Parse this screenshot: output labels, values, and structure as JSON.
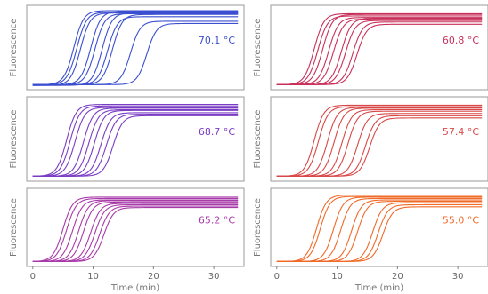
{
  "chart_data": [
    {
      "type": "line",
      "annotation": "70.1 °C",
      "color": "#3b4fd0",
      "ylabel": "Fluorescence",
      "xlabel": "",
      "xlim": [
        -1,
        35
      ],
      "xticks": [],
      "series": [
        {
          "midpoint": 6.8,
          "base": 0.02,
          "plateau": 1.0
        },
        {
          "midpoint": 7.3,
          "base": 0.02,
          "plateau": 0.98
        },
        {
          "midpoint": 7.9,
          "base": 0.01,
          "plateau": 0.97
        },
        {
          "midpoint": 9.6,
          "base": 0.02,
          "plateau": 0.99
        },
        {
          "midpoint": 10.3,
          "base": 0.02,
          "plateau": 0.96
        },
        {
          "midpoint": 11.5,
          "base": 0.01,
          "plateau": 0.97
        },
        {
          "midpoint": 12.4,
          "base": 0.02,
          "plateau": 0.92
        },
        {
          "midpoint": 13.2,
          "base": 0.02,
          "plateau": 0.95
        },
        {
          "midpoint": 16.2,
          "base": 0.02,
          "plateau": 0.86
        },
        {
          "midpoint": 18.9,
          "base": 0.02,
          "plateau": 0.83
        }
      ]
    },
    {
      "type": "line",
      "annotation": "60.8 °C",
      "color": "#c8305a",
      "ylabel": "Fluorescence",
      "xlabel": "",
      "xlim": [
        -1,
        35
      ],
      "xticks": [],
      "series": [
        {
          "midpoint": 6.2,
          "base": 0.02,
          "plateau": 0.96
        },
        {
          "midpoint": 6.8,
          "base": 0.02,
          "plateau": 0.93
        },
        {
          "midpoint": 7.6,
          "base": 0.02,
          "plateau": 0.95
        },
        {
          "midpoint": 8.6,
          "base": 0.02,
          "plateau": 0.91
        },
        {
          "midpoint": 9.4,
          "base": 0.02,
          "plateau": 0.89
        },
        {
          "midpoint": 10.7,
          "base": 0.02,
          "plateau": 0.9
        },
        {
          "midpoint": 11.4,
          "base": 0.02,
          "plateau": 0.87
        },
        {
          "midpoint": 12.6,
          "base": 0.02,
          "plateau": 0.85
        },
        {
          "midpoint": 13.3,
          "base": 0.02,
          "plateau": 0.82
        }
      ]
    },
    {
      "type": "line",
      "annotation": "68.7 °C",
      "color": "#7a3cc4",
      "ylabel": "Fluorescence",
      "xlabel": "",
      "xlim": [
        -1,
        35
      ],
      "xticks": [],
      "series": [
        {
          "midpoint": 5.6,
          "base": 0.02,
          "plateau": 0.97
        },
        {
          "midpoint": 6.2,
          "base": 0.02,
          "plateau": 0.95
        },
        {
          "midpoint": 7.0,
          "base": 0.02,
          "plateau": 0.93
        },
        {
          "midpoint": 8.4,
          "base": 0.02,
          "plateau": 0.92
        },
        {
          "midpoint": 9.3,
          "base": 0.02,
          "plateau": 0.9
        },
        {
          "midpoint": 10.2,
          "base": 0.02,
          "plateau": 0.89
        },
        {
          "midpoint": 11.3,
          "base": 0.02,
          "plateau": 0.86
        },
        {
          "midpoint": 12.2,
          "base": 0.02,
          "plateau": 0.84
        },
        {
          "midpoint": 13.3,
          "base": 0.02,
          "plateau": 0.82
        }
      ]
    },
    {
      "type": "line",
      "annotation": "57.4 °C",
      "color": "#d94848",
      "ylabel": "Fluorescence",
      "xlabel": "",
      "xlim": [
        -1,
        35
      ],
      "xticks": [],
      "series": [
        {
          "midpoint": 6.2,
          "base": 0.02,
          "plateau": 0.96
        },
        {
          "midpoint": 6.9,
          "base": 0.02,
          "plateau": 0.94
        },
        {
          "midpoint": 8.4,
          "base": 0.02,
          "plateau": 0.93
        },
        {
          "midpoint": 9.5,
          "base": 0.02,
          "plateau": 0.92
        },
        {
          "midpoint": 10.8,
          "base": 0.02,
          "plateau": 0.9
        },
        {
          "midpoint": 11.8,
          "base": 0.02,
          "plateau": 0.88
        },
        {
          "midpoint": 13.4,
          "base": 0.02,
          "plateau": 0.85
        },
        {
          "midpoint": 14.7,
          "base": 0.02,
          "plateau": 0.82
        },
        {
          "midpoint": 15.4,
          "base": 0.02,
          "plateau": 0.79
        }
      ]
    },
    {
      "type": "line",
      "annotation": "65.2 °C",
      "color": "#a83aa8",
      "ylabel": "Fluorescence",
      "xlabel": "Time (min)",
      "xlim": [
        -1,
        35
      ],
      "xticks": [
        0,
        10,
        20,
        30
      ],
      "xtick_labels": [
        "0",
        "10",
        "20",
        "30"
      ],
      "series": [
        {
          "midpoint": 5.0,
          "base": 0.02,
          "plateau": 0.95
        },
        {
          "midpoint": 5.6,
          "base": 0.02,
          "plateau": 0.93
        },
        {
          "midpoint": 6.6,
          "base": 0.02,
          "plateau": 0.91
        },
        {
          "midpoint": 7.6,
          "base": 0.02,
          "plateau": 0.9
        },
        {
          "midpoint": 8.4,
          "base": 0.02,
          "plateau": 0.88
        },
        {
          "midpoint": 9.6,
          "base": 0.02,
          "plateau": 0.86
        },
        {
          "midpoint": 10.3,
          "base": 0.02,
          "plateau": 0.84
        },
        {
          "midpoint": 11.1,
          "base": 0.02,
          "plateau": 0.82
        },
        {
          "midpoint": 11.8,
          "base": 0.02,
          "plateau": 0.8
        }
      ]
    },
    {
      "type": "line",
      "annotation": "55.0 °C",
      "color": "#f06a28",
      "ylabel": "Fluorescence",
      "xlabel": "Time (min)",
      "xlim": [
        -1,
        35
      ],
      "xticks": [
        0,
        10,
        20,
        30
      ],
      "xtick_labels": [
        "0",
        "10",
        "20",
        "30"
      ],
      "series": [
        {
          "midpoint": 6.6,
          "base": 0.02,
          "plateau": 0.98
        },
        {
          "midpoint": 7.2,
          "base": 0.02,
          "plateau": 0.96
        },
        {
          "midpoint": 9.4,
          "base": 0.02,
          "plateau": 0.95
        },
        {
          "midpoint": 10.6,
          "base": 0.02,
          "plateau": 0.93
        },
        {
          "midpoint": 12.4,
          "base": 0.02,
          "plateau": 0.91
        },
        {
          "midpoint": 13.4,
          "base": 0.02,
          "plateau": 0.89
        },
        {
          "midpoint": 15.9,
          "base": 0.02,
          "plateau": 0.87
        },
        {
          "midpoint": 16.8,
          "base": 0.02,
          "plateau": 0.84
        },
        {
          "midpoint": 17.6,
          "base": 0.02,
          "plateau": 0.81
        }
      ]
    }
  ]
}
